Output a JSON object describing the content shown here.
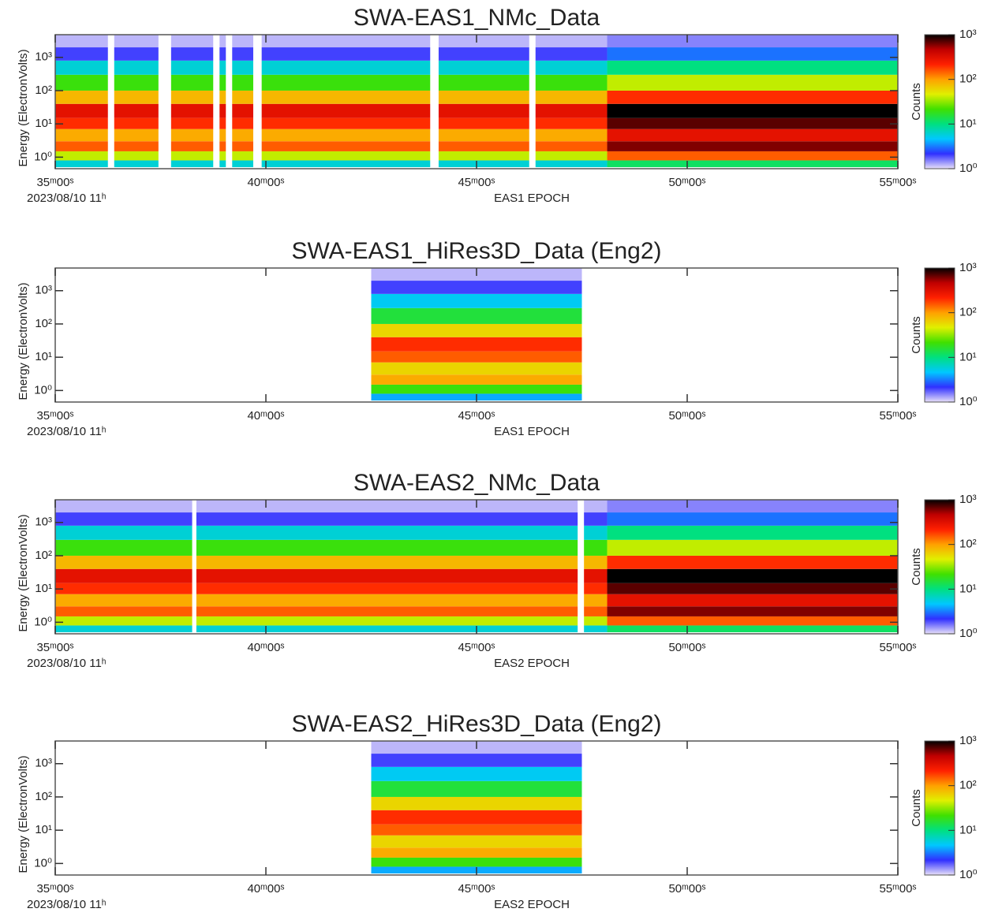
{
  "chart_data": [
    {
      "type": "heatmap",
      "title": "SWA-EAS1_NMc_Data",
      "xlabel": "EAS1 EPOCH",
      "date": "2023/08/10 11ʰ",
      "ylabel": "Energy (ElectronVolts)",
      "colorbar_label": "Counts",
      "log_y": true,
      "log_color": true,
      "xlim": [
        35,
        55
      ],
      "xticks": [
        {
          "value": 35,
          "label": "35ᵐ00ˢ"
        },
        {
          "value": 40,
          "label": "40ᵐ00ˢ"
        },
        {
          "value": 45,
          "label": "45ᵐ00ˢ"
        },
        {
          "value": 50,
          "label": "50ᵐ00ˢ"
        },
        {
          "value": 55,
          "label": "55ᵐ00ˢ"
        }
      ],
      "ylim": [
        0.45,
        4800
      ],
      "yticks": [
        {
          "value": 1,
          "label": "10⁰"
        },
        {
          "value": 10,
          "label": "10¹"
        },
        {
          "value": 100,
          "label": "10²"
        },
        {
          "value": 1000,
          "label": "10³"
        }
      ],
      "clim": [
        1,
        1000
      ],
      "cticks": [
        {
          "value": 1,
          "label": "10⁰"
        },
        {
          "value": 10,
          "label": "10¹"
        },
        {
          "value": 100,
          "label": "10²"
        },
        {
          "value": 1000,
          "label": "10³"
        }
      ],
      "colormap": [
        "#e8e0f8",
        "#3030ff",
        "#00c8ff",
        "#00e080",
        "#40e000",
        "#e0f000",
        "#ffa000",
        "#ff2000",
        "#c00000",
        "#000000"
      ],
      "x": [
        35,
        36.25,
        36.4,
        37.45,
        37.75,
        38.75,
        38.9,
        39.05,
        39.2,
        39.7,
        39.9,
        43.9,
        44.1,
        46.25,
        46.4,
        48.1,
        55
      ],
      "y": [
        0.5,
        0.8,
        1.5,
        3,
        7,
        15,
        40,
        100,
        300,
        800,
        2000,
        4800
      ],
      "values": [
        [
          6,
          40,
          150,
          90,
          200,
          300,
          80,
          20,
          6,
          2,
          1.2
        ],
        null,
        [
          6,
          40,
          150,
          90,
          200,
          300,
          80,
          20,
          6,
          2,
          1.2
        ],
        null,
        [
          6,
          40,
          150,
          90,
          200,
          300,
          80,
          20,
          6,
          2,
          1.2
        ],
        null,
        [
          6,
          40,
          150,
          90,
          200,
          300,
          80,
          20,
          6,
          2,
          1.2
        ],
        null,
        [
          6,
          40,
          150,
          90,
          200,
          300,
          80,
          20,
          6,
          2,
          1.2
        ],
        null,
        [
          6,
          40,
          150,
          90,
          200,
          300,
          80,
          20,
          6,
          2,
          1.2
        ],
        null,
        [
          6,
          40,
          150,
          90,
          200,
          300,
          80,
          20,
          6,
          2,
          1.2
        ],
        null,
        [
          6,
          40,
          150,
          90,
          200,
          300,
          80,
          20,
          6,
          2,
          1.2
        ],
        [
          12,
          150,
          600,
          300,
          700,
          1000,
          200,
          40,
          10,
          3,
          1.5
        ]
      ]
    },
    {
      "type": "heatmap",
      "title": "SWA-EAS1_HiRes3D_Data (Eng2)",
      "xlabel": "EAS1 EPOCH",
      "date": "2023/08/10 11ʰ",
      "ylabel": "Energy (ElectronVolts)",
      "colorbar_label": "Counts",
      "log_y": true,
      "log_color": true,
      "xlim": [
        35,
        55
      ],
      "xticks": [
        {
          "value": 35,
          "label": "35ᵐ00ˢ"
        },
        {
          "value": 40,
          "label": "40ᵐ00ˢ"
        },
        {
          "value": 45,
          "label": "45ᵐ00ˢ"
        },
        {
          "value": 50,
          "label": "50ᵐ00ˢ"
        },
        {
          "value": 55,
          "label": "55ᵐ00ˢ"
        }
      ],
      "ylim": [
        0.45,
        4800
      ],
      "yticks": [
        {
          "value": 1,
          "label": "10⁰"
        },
        {
          "value": 10,
          "label": "10¹"
        },
        {
          "value": 100,
          "label": "10²"
        },
        {
          "value": 1000,
          "label": "10³"
        }
      ],
      "clim": [
        1,
        1000
      ],
      "cticks": [
        {
          "value": 1,
          "label": "10⁰"
        },
        {
          "value": 10,
          "label": "10¹"
        },
        {
          "value": 100,
          "label": "10²"
        },
        {
          "value": 1000,
          "label": "10³"
        }
      ],
      "colormap": [
        "#e8e0f8",
        "#3030ff",
        "#00c8ff",
        "#00e080",
        "#40e000",
        "#e0f000",
        "#ffa000",
        "#ff2000",
        "#c00000",
        "#000000"
      ],
      "x": [
        42.5,
        47.5
      ],
      "y": [
        0.5,
        0.8,
        1.5,
        3,
        7,
        15,
        40,
        100,
        300,
        800,
        2000,
        4800
      ],
      "values": [
        [
          4,
          20,
          90,
          60,
          150,
          200,
          60,
          15,
          5,
          2,
          1.2
        ]
      ]
    },
    {
      "type": "heatmap",
      "title": "SWA-EAS2_NMc_Data",
      "xlabel": "EAS2 EPOCH",
      "date": "2023/08/10 11ʰ",
      "ylabel": "Energy (ElectronVolts)",
      "colorbar_label": "Counts",
      "log_y": true,
      "log_color": true,
      "xlim": [
        35,
        55
      ],
      "xticks": [
        {
          "value": 35,
          "label": "35ᵐ00ˢ"
        },
        {
          "value": 40,
          "label": "40ᵐ00ˢ"
        },
        {
          "value": 45,
          "label": "45ᵐ00ˢ"
        },
        {
          "value": 50,
          "label": "50ᵐ00ˢ"
        },
        {
          "value": 55,
          "label": "55ᵐ00ˢ"
        }
      ],
      "ylim": [
        0.45,
        4800
      ],
      "yticks": [
        {
          "value": 1,
          "label": "10⁰"
        },
        {
          "value": 10,
          "label": "10¹"
        },
        {
          "value": 100,
          "label": "10²"
        },
        {
          "value": 1000,
          "label": "10³"
        }
      ],
      "clim": [
        1,
        1000
      ],
      "cticks": [
        {
          "value": 1,
          "label": "10⁰"
        },
        {
          "value": 10,
          "label": "10¹"
        },
        {
          "value": 100,
          "label": "10²"
        },
        {
          "value": 1000,
          "label": "10³"
        }
      ],
      "colormap": [
        "#e8e0f8",
        "#3030ff",
        "#00c8ff",
        "#00e080",
        "#40e000",
        "#e0f000",
        "#ffa000",
        "#ff2000",
        "#c00000",
        "#000000"
      ],
      "x": [
        35,
        38.25,
        38.35,
        47.4,
        47.55,
        48.1,
        55
      ],
      "y": [
        0.5,
        0.8,
        1.5,
        3,
        7,
        15,
        40,
        100,
        300,
        800,
        2000,
        4800
      ],
      "values": [
        [
          6,
          40,
          150,
          90,
          200,
          300,
          80,
          20,
          6,
          2,
          1.2
        ],
        null,
        [
          6,
          40,
          150,
          90,
          200,
          300,
          80,
          20,
          6,
          2,
          1.2
        ],
        null,
        [
          6,
          40,
          150,
          90,
          200,
          300,
          80,
          20,
          6,
          2,
          1.2
        ],
        [
          12,
          150,
          600,
          300,
          700,
          1000,
          200,
          40,
          10,
          3,
          1.5
        ]
      ]
    },
    {
      "type": "heatmap",
      "title": "SWA-EAS2_HiRes3D_Data (Eng2)",
      "xlabel": "EAS2 EPOCH",
      "date": "2023/08/10 11ʰ",
      "ylabel": "Energy (ElectronVolts)",
      "colorbar_label": "Counts",
      "log_y": true,
      "log_color": true,
      "xlim": [
        35,
        55
      ],
      "xticks": [
        {
          "value": 35,
          "label": "35ᵐ00ˢ"
        },
        {
          "value": 40,
          "label": "40ᵐ00ˢ"
        },
        {
          "value": 45,
          "label": "45ᵐ00ˢ"
        },
        {
          "value": 50,
          "label": "50ᵐ00ˢ"
        },
        {
          "value": 55,
          "label": "55ᵐ00ˢ"
        }
      ],
      "ylim": [
        0.45,
        4800
      ],
      "yticks": [
        {
          "value": 1,
          "label": "10⁰"
        },
        {
          "value": 10,
          "label": "10¹"
        },
        {
          "value": 100,
          "label": "10²"
        },
        {
          "value": 1000,
          "label": "10³"
        }
      ],
      "clim": [
        1,
        1000
      ],
      "cticks": [
        {
          "value": 1,
          "label": "10⁰"
        },
        {
          "value": 10,
          "label": "10¹"
        },
        {
          "value": 100,
          "label": "10²"
        },
        {
          "value": 1000,
          "label": "10³"
        }
      ],
      "colormap": [
        "#e8e0f8",
        "#3030ff",
        "#00c8ff",
        "#00e080",
        "#40e000",
        "#e0f000",
        "#ffa000",
        "#ff2000",
        "#c00000",
        "#000000"
      ],
      "x": [
        42.5,
        47.5
      ],
      "y": [
        0.5,
        0.8,
        1.5,
        3,
        7,
        15,
        40,
        100,
        300,
        800,
        2000,
        4800
      ],
      "values": [
        [
          4,
          20,
          90,
          60,
          150,
          200,
          60,
          15,
          5,
          2,
          1.2
        ]
      ]
    }
  ]
}
